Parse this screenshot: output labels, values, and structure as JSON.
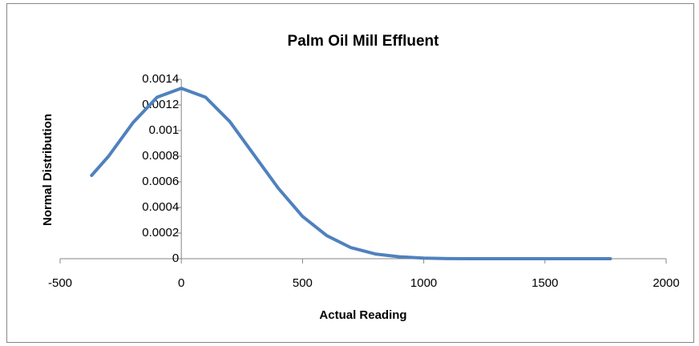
{
  "chart_data": {
    "type": "line",
    "title": "Palm Oil Mill Effluent",
    "x_label": "Actual Reading",
    "y_label": "Normal Distribution",
    "x": [
      -370,
      -300,
      -200,
      -100,
      0,
      100,
      200,
      300,
      400,
      500,
      600,
      700,
      800,
      900,
      1000,
      1100,
      1200,
      1300,
      1400,
      1500,
      1600,
      1700,
      1770
    ],
    "series": [
      {
        "name": "Normal Distribution",
        "color": "#4f81bd",
        "values": [
          0.00065,
          0.0008,
          0.00106,
          0.00126,
          0.00133,
          0.00126,
          0.00107,
          0.00081,
          0.00055,
          0.00033,
          0.00018,
          8.6e-05,
          3.7e-05,
          1.5e-05,
          5e-06,
          1e-06,
          0,
          0,
          0,
          0,
          0,
          0,
          0
        ]
      }
    ],
    "xlim": [
      -500,
      2000
    ],
    "xticks": [
      -500,
      0,
      500,
      1000,
      1500,
      2000
    ],
    "ylim": [
      0,
      0.0014
    ],
    "yticks": [
      0,
      0.0002,
      0.0004,
      0.0006,
      0.0008,
      0.001,
      0.0012,
      0.0014
    ]
  }
}
